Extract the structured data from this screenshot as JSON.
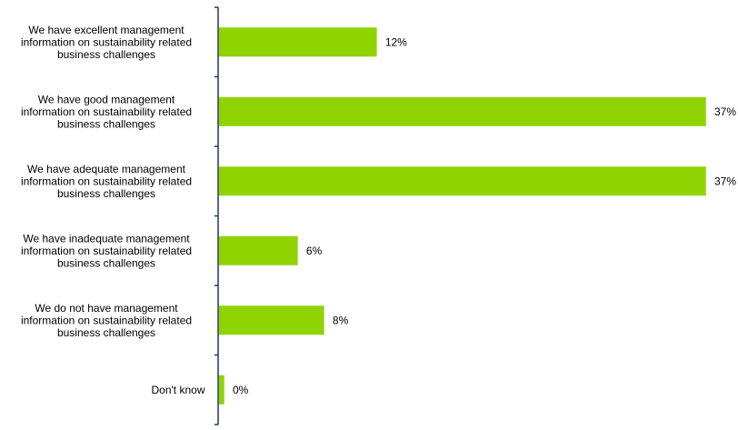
{
  "chart_data": {
    "type": "bar",
    "orientation": "horizontal",
    "categories": [
      [
        "We have excellent management",
        "information on sustainability related",
        "business challenges"
      ],
      [
        "We have good management",
        "information on sustainability related",
        "business challenges"
      ],
      [
        "We have adequate management",
        "information on sustainability related",
        "business challenges"
      ],
      [
        "We have inadequate management",
        "information on sustainability related",
        "business challenges"
      ],
      [
        "We do not have management",
        "information on sustainability related",
        "business challenges"
      ],
      [
        "Don't know"
      ]
    ],
    "values": [
      12,
      37,
      37,
      6,
      8,
      0
    ],
    "value_labels": [
      "12%",
      "37%",
      "37%",
      "6%",
      "8%",
      "0%"
    ],
    "unit": "%",
    "xlim": [
      0,
      37
    ],
    "grid": false,
    "legend": "none",
    "colors": {
      "bar": "#8fd400",
      "axis": "#1f3864",
      "text": "#000000"
    }
  }
}
